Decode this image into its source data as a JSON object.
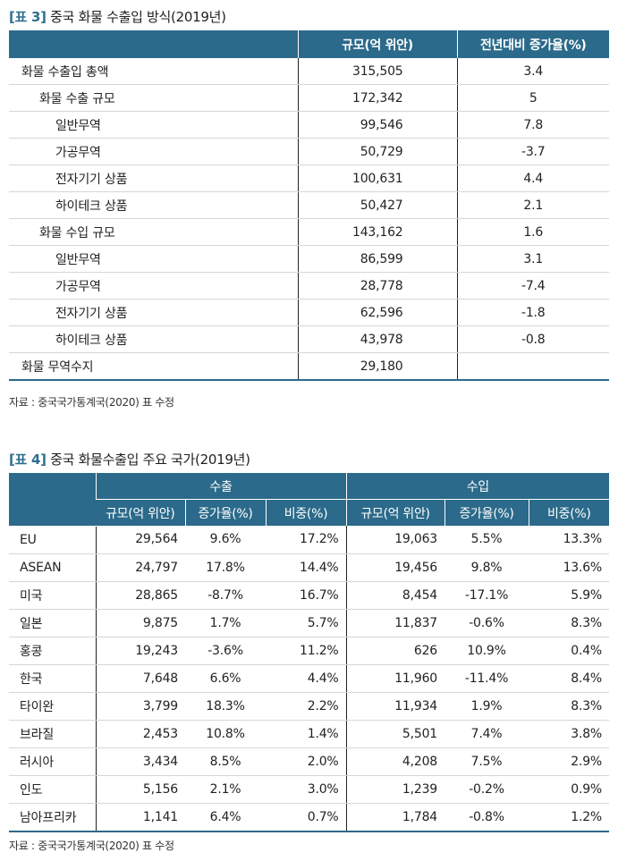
{
  "table3": {
    "caption_tag": "[표 3]",
    "caption_text": "중국 화물 수출입 방식(2019년)",
    "headers": {
      "blank": "",
      "value": "규모(억 위안)",
      "change": "전년대비 증가율(%)"
    },
    "rows": [
      {
        "label": "화물 수출입 총액",
        "value": "315,505",
        "change": "3.4"
      },
      {
        "label": "화물 수출 규모",
        "value": "172,342",
        "change": "5"
      },
      {
        "label": "일반무역",
        "value": "99,546",
        "change": "7.8"
      },
      {
        "label": "가공무역",
        "value": "50,729",
        "change": "-3.7"
      },
      {
        "label": "전자기기 상품",
        "value": "100,631",
        "change": "4.4"
      },
      {
        "label": "하이테크 상품",
        "value": "50,427",
        "change": "2.1"
      },
      {
        "label": "화물 수입 규모",
        "value": "143,162",
        "change": "1.6"
      },
      {
        "label": "일반무역",
        "value": "86,599",
        "change": "3.1"
      },
      {
        "label": "가공무역",
        "value": "28,778",
        "change": "-7.4"
      },
      {
        "label": "전자기기 상품",
        "value": "62,596",
        "change": "-1.8"
      },
      {
        "label": "하이테크 상품",
        "value": "43,978",
        "change": "-0.8"
      },
      {
        "label": "화물 무역수지",
        "value": "29,180",
        "change": ""
      }
    ],
    "source": "자료 : 중국국가통계국(2020) 표 수정"
  },
  "table4": {
    "caption_tag": "[표 4]",
    "caption_text": "중국 화물수출입 주요 국가(2019년)",
    "group_headers": {
      "blank": "",
      "export": "수출",
      "import": "수입"
    },
    "sub_headers": [
      "규모(억 위안)",
      "증가율(%)",
      "비중(%)",
      "규모(억 위안)",
      "증가율(%)",
      "비중(%)"
    ],
    "rows": [
      {
        "country": "EU",
        "ex_value": "29,564",
        "ex_growth": "9.6%",
        "ex_share": "17.2%",
        "im_value": "19,063",
        "im_growth": "5.5%",
        "im_share": "13.3%"
      },
      {
        "country": "ASEAN",
        "ex_value": "24,797",
        "ex_growth": "17.8%",
        "ex_share": "14.4%",
        "im_value": "19,456",
        "im_growth": "9.8%",
        "im_share": "13.6%"
      },
      {
        "country": "미국",
        "ex_value": "28,865",
        "ex_growth": "-8.7%",
        "ex_share": "16.7%",
        "im_value": "8,454",
        "im_growth": "-17.1%",
        "im_share": "5.9%"
      },
      {
        "country": "일본",
        "ex_value": "9,875",
        "ex_growth": "1.7%",
        "ex_share": "5.7%",
        "im_value": "11,837",
        "im_growth": "-0.6%",
        "im_share": "8.3%"
      },
      {
        "country": "홍콩",
        "ex_value": "19,243",
        "ex_growth": "-3.6%",
        "ex_share": "11.2%",
        "im_value": "626",
        "im_growth": "10.9%",
        "im_share": "0.4%"
      },
      {
        "country": "한국",
        "ex_value": "7,648",
        "ex_growth": "6.6%",
        "ex_share": "4.4%",
        "im_value": "11,960",
        "im_growth": "-11.4%",
        "im_share": "8.4%"
      },
      {
        "country": "타이완",
        "ex_value": "3,799",
        "ex_growth": "18.3%",
        "ex_share": "2.2%",
        "im_value": "11,934",
        "im_growth": "1.9%",
        "im_share": "8.3%"
      },
      {
        "country": "브라질",
        "ex_value": "2,453",
        "ex_growth": "10.8%",
        "ex_share": "1.4%",
        "im_value": "5,501",
        "im_growth": "7.4%",
        "im_share": "3.8%"
      },
      {
        "country": "러시아",
        "ex_value": "3,434",
        "ex_growth": "8.5%",
        "ex_share": "2.0%",
        "im_value": "4,208",
        "im_growth": "7.5%",
        "im_share": "2.9%"
      },
      {
        "country": "인도",
        "ex_value": "5,156",
        "ex_growth": "2.1%",
        "ex_share": "3.0%",
        "im_value": "1,239",
        "im_growth": "-0.2%",
        "im_share": "0.9%"
      },
      {
        "country": "남아프리카",
        "ex_value": "1,141",
        "ex_growth": "6.4%",
        "ex_share": "0.7%",
        "im_value": "1,784",
        "im_growth": "-0.8%",
        "im_share": "1.2%"
      }
    ],
    "source": "자료 : 중국국가통계국(2020) 표 수정"
  },
  "colors": {
    "header_bg": "#2b6a8a",
    "caption_tag": "#2f6f8f"
  }
}
